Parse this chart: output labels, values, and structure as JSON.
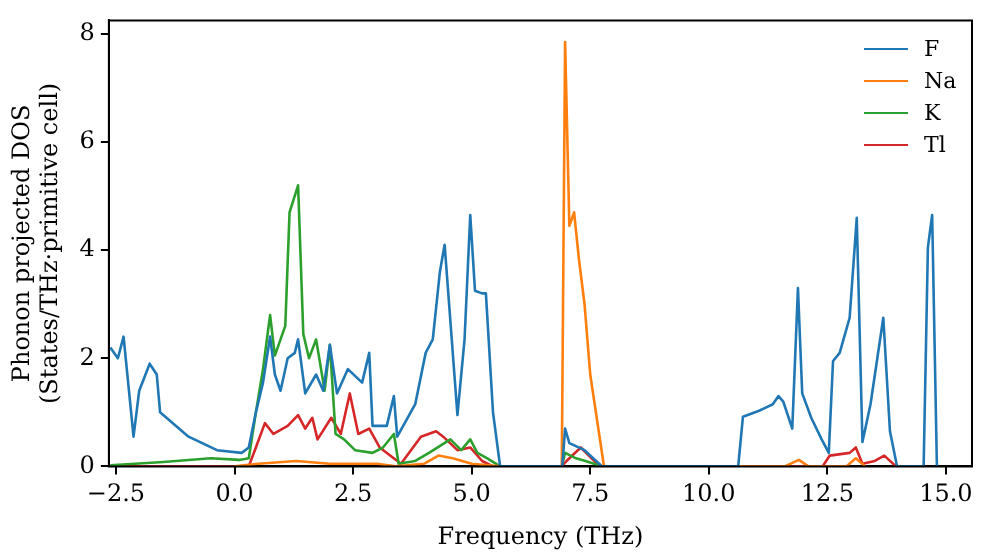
{
  "chart_data": {
    "type": "line",
    "xlabel": "Frequency (THz)",
    "ylabel": "Phonon projected DOS\n(States/THz·primitive cell)",
    "xlim": [
      -2.65,
      15.55
    ],
    "xticks": [
      {
        "value": -2.5,
        "label": "−2.5"
      },
      {
        "value": 0,
        "label": "0.0"
      },
      {
        "value": 2.5,
        "label": "2.5"
      },
      {
        "value": 5,
        "label": "5.0"
      },
      {
        "value": 7.5,
        "label": "7.5"
      },
      {
        "value": 10,
        "label": "10.0"
      },
      {
        "value": 12.5,
        "label": "12.5"
      },
      {
        "value": 15,
        "label": "15.0"
      }
    ],
    "ylim": [
      0,
      8.25
    ],
    "yticks": [
      0,
      2,
      4,
      6,
      8
    ],
    "grid": false,
    "legend": "top right",
    "marker": "none",
    "line_style": "solid",
    "series": [
      {
        "name": "F",
        "color": "#1f77b4",
        "x": [
          -2.62,
          -2.46,
          -2.34,
          -2.13,
          -2.01,
          -1.79,
          -1.64,
          -1.57,
          -0.97,
          -0.37,
          0.15,
          0.3,
          0.45,
          0.6,
          0.75,
          0.85,
          0.97,
          1.12,
          1.27,
          1.34,
          1.49,
          1.72,
          1.87,
          2.01,
          2.16,
          2.39,
          2.69,
          2.84,
          2.91,
          3.21,
          3.36,
          3.43,
          3.81,
          4.03,
          4.18,
          4.33,
          4.43,
          4.55,
          4.7,
          4.85,
          4.97,
          5.07,
          5.22,
          5.3,
          5.45,
          5.6,
          6.91,
          6.97,
          7.06,
          7.38,
          7.75,
          10.62,
          10.72,
          11.06,
          11.35,
          11.47,
          11.57,
          11.76,
          11.88,
          11.97,
          12.16,
          12.38,
          12.53,
          12.62,
          12.76,
          12.97,
          13.12,
          13.24,
          13.41,
          13.68,
          13.82,
          13.97,
          14.53,
          14.62,
          14.71,
          14.81
        ],
        "values": [
          2.2,
          2.0,
          2.4,
          0.55,
          1.4,
          1.9,
          1.7,
          1.0,
          0.55,
          0.3,
          0.25,
          0.35,
          1.0,
          1.55,
          2.4,
          1.7,
          1.4,
          2.0,
          2.1,
          2.35,
          1.35,
          1.7,
          1.4,
          2.25,
          1.35,
          1.8,
          1.55,
          2.1,
          0.75,
          0.75,
          1.3,
          0.55,
          1.15,
          2.1,
          2.35,
          3.6,
          4.1,
          2.7,
          0.95,
          2.35,
          4.65,
          3.25,
          3.2,
          3.2,
          1.0,
          0,
          0,
          0.7,
          0.43,
          0.3,
          0,
          0,
          0.92,
          1.03,
          1.15,
          1.3,
          1.2,
          0.7,
          3.3,
          1.35,
          0.9,
          0.5,
          0.25,
          1.95,
          2.1,
          2.75,
          4.6,
          0.45,
          1.15,
          2.75,
          0.65,
          0,
          0,
          4.05,
          4.65,
          0
        ]
      },
      {
        "name": "Na",
        "color": "#ff7f0e",
        "x": [
          0.0,
          0.5,
          1.3,
          2.0,
          3.0,
          3.4,
          4.0,
          4.3,
          4.6,
          5.0,
          5.6,
          6.9,
          6.97,
          7.06,
          7.16,
          7.26,
          7.38,
          7.5,
          7.79,
          11.6,
          11.9,
          12.1,
          12.9,
          13.1,
          13.3
        ],
        "values": [
          0,
          0.05,
          0.1,
          0.05,
          0.05,
          0,
          0.05,
          0.2,
          0.15,
          0.05,
          0,
          0,
          7.85,
          4.45,
          4.7,
          3.85,
          3.0,
          1.7,
          0,
          0,
          0.12,
          0,
          0,
          0.15,
          0
        ]
      },
      {
        "name": "K",
        "color": "#2ca02c",
        "x": [
          -2.62,
          -1.5,
          -0.5,
          0.1,
          0.3,
          0.45,
          0.6,
          0.75,
          0.85,
          0.97,
          1.07,
          1.16,
          1.34,
          1.45,
          1.57,
          1.72,
          1.9,
          2.01,
          2.13,
          2.31,
          2.54,
          2.91,
          3.13,
          3.36,
          3.46,
          3.81,
          4.1,
          4.55,
          4.78,
          4.97,
          5.12,
          5.33,
          5.6,
          6.9,
          6.97,
          7.2,
          7.4,
          7.75
        ],
        "values": [
          0.02,
          0.08,
          0.15,
          0.12,
          0.15,
          1.0,
          1.8,
          2.8,
          2.05,
          2.35,
          2.6,
          4.7,
          5.2,
          2.45,
          2.0,
          2.35,
          1.4,
          2.25,
          0.6,
          0.5,
          0.3,
          0.25,
          0.35,
          0.6,
          0.05,
          0.1,
          0.25,
          0.5,
          0.3,
          0.5,
          0.25,
          0.15,
          0,
          0,
          0.25,
          0.15,
          0.1,
          0
        ]
      },
      {
        "name": "Tl",
        "color": "#d62728",
        "x": [
          -2.62,
          0.3,
          0.45,
          0.64,
          0.82,
          1.12,
          1.34,
          1.49,
          1.64,
          1.75,
          2.04,
          2.24,
          2.43,
          2.61,
          2.84,
          3.06,
          3.51,
          3.93,
          4.25,
          4.4,
          4.7,
          4.97,
          5.22,
          5.45,
          6.9,
          7.0,
          7.3,
          7.7,
          12.4,
          12.55,
          12.97,
          13.1,
          13.24,
          13.5,
          13.7,
          13.95
        ],
        "values": [
          0,
          0,
          0.35,
          0.8,
          0.6,
          0.75,
          0.95,
          0.7,
          0.9,
          0.5,
          0.9,
          0.6,
          1.35,
          0.6,
          0.7,
          0.35,
          0.05,
          0.55,
          0.65,
          0.55,
          0.3,
          0.35,
          0.1,
          0,
          0,
          0.1,
          0.35,
          0,
          0,
          0.2,
          0.25,
          0.35,
          0.05,
          0.1,
          0.2,
          0
        ]
      }
    ]
  }
}
